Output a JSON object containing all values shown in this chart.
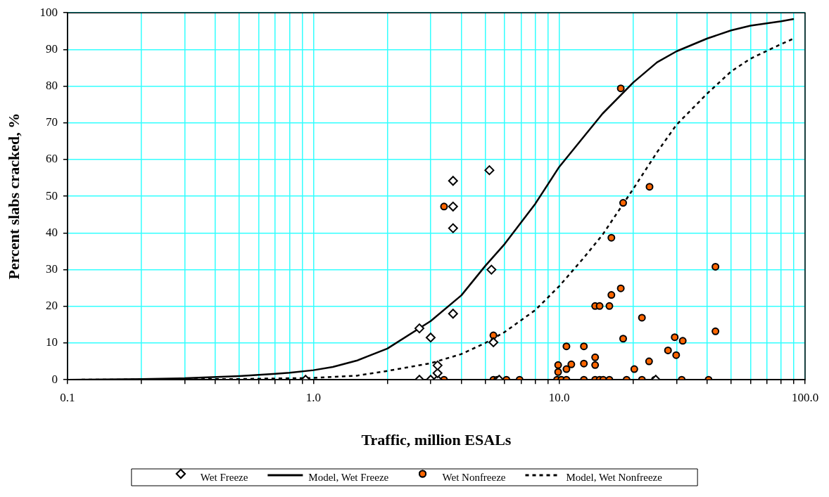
{
  "chart_data": {
    "type": "scatter",
    "xlabel": "Traffic, million ESALs",
    "ylabel": "Percent slabs cracked, %",
    "log": "x",
    "grid": true,
    "legend": "bottom",
    "xlim": [
      0.1,
      100
    ],
    "xticks": [
      {
        "value": 0.1,
        "label": "0.1"
      },
      {
        "value": 0.2,
        "label": null
      },
      {
        "value": 0.3,
        "label": null
      },
      {
        "value": 0.4,
        "label": null
      },
      {
        "value": 0.5,
        "label": null
      },
      {
        "value": 0.6,
        "label": null
      },
      {
        "value": 0.7,
        "label": null
      },
      {
        "value": 0.8,
        "label": null
      },
      {
        "value": 0.9,
        "label": null
      },
      {
        "value": 1,
        "label": "1.0"
      },
      {
        "value": 2,
        "label": null
      },
      {
        "value": 3,
        "label": null
      },
      {
        "value": 4,
        "label": null
      },
      {
        "value": 5,
        "label": null
      },
      {
        "value": 6,
        "label": null
      },
      {
        "value": 7,
        "label": null
      },
      {
        "value": 8,
        "label": null
      },
      {
        "value": 9,
        "label": null
      },
      {
        "value": 10,
        "label": "10.0"
      },
      {
        "value": 20,
        "label": null
      },
      {
        "value": 30,
        "label": null
      },
      {
        "value": 40,
        "label": null
      },
      {
        "value": 50,
        "label": null
      },
      {
        "value": 60,
        "label": null
      },
      {
        "value": 70,
        "label": null
      },
      {
        "value": 80,
        "label": null
      },
      {
        "value": 90,
        "label": null
      },
      {
        "value": 100,
        "label": "100.0"
      }
    ],
    "ylim": [
      0,
      100
    ],
    "yticks": [
      0,
      10,
      20,
      30,
      40,
      50,
      60,
      70,
      80,
      90,
      100
    ],
    "series": [
      {
        "name": "Wet Freeze",
        "type": "scatter",
        "marker": "diamond",
        "color": "#000000",
        "x": [
          0.93,
          2.7,
          3.0,
          2.7,
          3.0,
          3.2,
          3.2,
          3.2,
          3.7,
          5.3,
          5.4,
          5.7,
          3.7,
          3.7,
          3.7,
          5.2,
          24.7
        ],
        "values": [
          0,
          14,
          11.5,
          0,
          0,
          0,
          1.8,
          3.9,
          18,
          30,
          10.2,
          0,
          47.2,
          41.3,
          54.2,
          57.1,
          0
        ]
      },
      {
        "name": "Model, Wet Freeze",
        "type": "line",
        "marker": "none",
        "line_style": "solid",
        "color": "#000000",
        "x": [
          0.1,
          0.2,
          0.3,
          0.5,
          0.7,
          0.8,
          1.0,
          1.2,
          1.5,
          2.0,
          3.0,
          4.0,
          5.0,
          6.0,
          8.0,
          10,
          12.5,
          15,
          20,
          25,
          30,
          40,
          50,
          60,
          80,
          90
        ],
        "values": [
          0,
          0.2,
          0.4,
          1.0,
          1.6,
          1.9,
          2.6,
          3.5,
          5.2,
          8.5,
          16,
          23,
          31,
          37,
          48,
          58,
          66,
          72.5,
          81,
          86.5,
          89.5,
          93,
          95.2,
          96.5,
          97.7,
          98.3
        ]
      },
      {
        "name": "Wet Nonfreeze",
        "type": "scatter",
        "marker": "circle",
        "color": "#ff6600",
        "x": [
          3.4,
          3.4,
          5.4,
          5.4,
          5.6,
          6.1,
          6.9,
          9.8,
          9.9,
          9.9,
          10.2,
          10.7,
          10.7,
          10.7,
          11.2,
          12.6,
          12.6,
          12.6,
          14.0,
          14.0,
          14.0,
          14.0,
          14.6,
          14.6,
          15.1,
          16.0,
          16.0,
          16.3,
          17.8,
          18.2,
          18.8,
          20.2,
          21.7,
          21.7,
          23.2,
          24.5,
          27.7,
          29.5,
          29.9,
          31.8,
          31.5,
          40.5,
          43.2,
          43.2,
          17.8,
          23.3,
          18.2,
          16.3
        ],
        "values": [
          47.2,
          0,
          12.1,
          0,
          0,
          0,
          0,
          0,
          2.1,
          4.0,
          0,
          0,
          2.9,
          9.1,
          4.2,
          0,
          4.4,
          9.1,
          0,
          4.0,
          6.1,
          20.1,
          20.1,
          0,
          0,
          0,
          20.1,
          23.1,
          24.9,
          11.2,
          0,
          2.9,
          16.9,
          0,
          5.0,
          0,
          8.0,
          11.6,
          6.7,
          10.6,
          0,
          0,
          30.8,
          13.2,
          79.4,
          52.6,
          48.2,
          38.7
        ]
      },
      {
        "name": "Model, Wet Nonfreeze",
        "type": "line",
        "marker": "none",
        "line_style": "dashed",
        "color": "#000000",
        "x": [
          0.1,
          0.5,
          1.0,
          1.5,
          2.0,
          3.0,
          4.0,
          5.0,
          6.0,
          8.0,
          10,
          12.5,
          15,
          20,
          25,
          30,
          40,
          50,
          60,
          80,
          90
        ],
        "values": [
          0,
          0.2,
          0.5,
          1.1,
          2.4,
          4.5,
          7,
          10,
          13,
          19,
          25.5,
          33,
          39.5,
          52,
          62,
          69.5,
          78,
          84,
          87.5,
          91.5,
          93
        ]
      }
    ]
  }
}
